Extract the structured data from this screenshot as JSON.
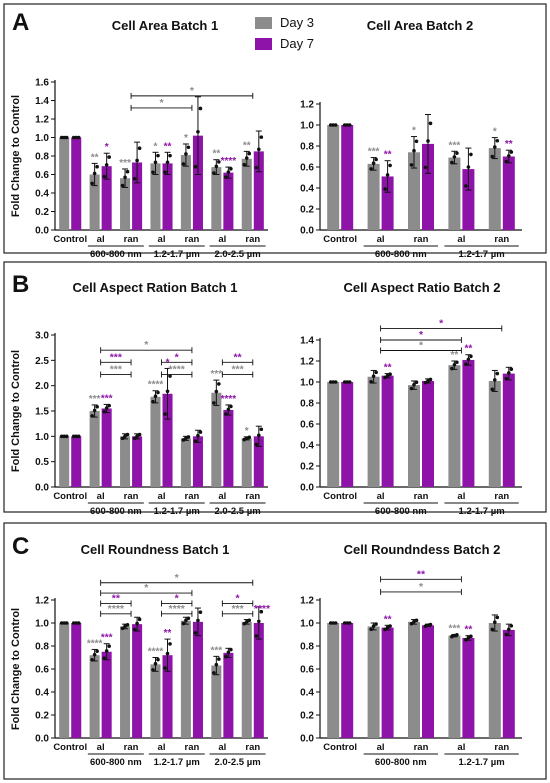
{
  "legend": [
    {
      "label": "Day 3",
      "color": "#8c8c8c"
    },
    {
      "label": "Day 7",
      "color": "#8e13a8"
    }
  ],
  "colors": {
    "day3": "#8c8c8c",
    "day7": "#8e13a8",
    "sig_gray": "#8c8c8c",
    "sig_purple": "#8e13a8"
  },
  "chart_data": [
    {
      "type": "bar",
      "panel": "A",
      "title": "Cell  Area Batch 1",
      "ylabel": "Fold Change to Control",
      "ylim": [
        0,
        1.6
      ],
      "yticks": [
        0.0,
        0.2,
        0.4,
        0.6,
        0.8,
        1.0,
        1.2,
        1.4,
        1.6
      ],
      "categories": [
        "Control",
        "al",
        "ran",
        "al",
        "ran",
        "al",
        "ran"
      ],
      "groups": [
        {
          "label": "600-800 nm",
          "from": 1,
          "to": 2
        },
        {
          "label": "1.2-1.7 µm",
          "from": 3,
          "to": 4
        },
        {
          "label": "2.0-2.5 µm",
          "from": 5,
          "to": 6
        }
      ],
      "series": [
        {
          "values": [
            1.0,
            0.6,
            0.56,
            0.72,
            0.81,
            0.68,
            0.77
          ],
          "err": [
            0,
            0.12,
            0.1,
            0.12,
            0.12,
            0.08,
            0.08
          ],
          "sig": [
            "",
            "**",
            "***",
            "*",
            "*",
            "**",
            "**"
          ]
        },
        {
          "values": [
            1.0,
            0.69,
            0.73,
            0.72,
            1.02,
            0.62,
            0.85
          ],
          "err": [
            0,
            0.14,
            0.22,
            0.12,
            0.42,
            0.06,
            0.22
          ],
          "sig": [
            "",
            "*",
            "",
            "**",
            "",
            "****",
            ""
          ]
        }
      ],
      "brackets": [
        {
          "from": 2,
          "to": 4,
          "y": 1.32,
          "label": "*",
          "color": "gray"
        },
        {
          "from": 2,
          "to": 6,
          "y": 1.45,
          "label": "*",
          "color": "gray"
        }
      ]
    },
    {
      "type": "bar",
      "panel": "A",
      "title": "Cell Area Batch 2",
      "ylabel": "",
      "ylim": [
        0,
        1.2
      ],
      "yticks": [
        0.0,
        0.2,
        0.4,
        0.6,
        0.8,
        1.0,
        1.2
      ],
      "categories": [
        "Control",
        "al",
        "ran",
        "al",
        "ran"
      ],
      "groups": [
        {
          "label": "600-800 nm",
          "from": 1,
          "to": 2
        },
        {
          "label": "1.2-1.7 µm",
          "from": 3,
          "to": 4
        }
      ],
      "series": [
        {
          "values": [
            1.0,
            0.63,
            0.74,
            0.69,
            0.78
          ],
          "err": [
            0,
            0.06,
            0.15,
            0.06,
            0.1
          ],
          "sig": [
            "",
            "***",
            "*",
            "***",
            "*"
          ]
        },
        {
          "values": [
            1.0,
            0.51,
            0.82,
            0.58,
            0.7
          ],
          "err": [
            0,
            0.15,
            0.28,
            0.2,
            0.06
          ],
          "sig": [
            "",
            "**",
            "",
            "",
            "**"
          ]
        }
      ],
      "brackets": []
    },
    {
      "type": "bar",
      "panel": "B",
      "title": "Cell Aspect  Ration Batch 1",
      "ylabel": "Fold Change to Control",
      "ylim": [
        0,
        3.0
      ],
      "yticks": [
        0.0,
        0.5,
        1.0,
        1.5,
        2.0,
        2.5,
        3.0
      ],
      "categories": [
        "Control",
        "al",
        "ran",
        "al",
        "ran",
        "al",
        "ran"
      ],
      "groups": [
        {
          "label": "600-800 nm",
          "from": 1,
          "to": 2
        },
        {
          "label": "1.2-1.7 µm",
          "from": 3,
          "to": 4
        },
        {
          "label": "2.0-2.5 µm",
          "from": 5,
          "to": 6
        }
      ],
      "series": [
        {
          "values": [
            1.0,
            1.5,
            1.0,
            1.78,
            0.96,
            1.86,
            0.96
          ],
          "err": [
            0,
            0.12,
            0.05,
            0.12,
            0.04,
            0.25,
            0.03
          ],
          "sig": [
            "",
            "***",
            "",
            "****",
            "",
            "***",
            "*"
          ]
        },
        {
          "values": [
            1.0,
            1.55,
            1.0,
            1.84,
            1.0,
            1.52,
            1.0
          ],
          "err": [
            0,
            0.08,
            0.05,
            0.5,
            0.12,
            0.1,
            0.2
          ],
          "sig": [
            "",
            "***",
            "",
            "*",
            "",
            "****",
            ""
          ]
        }
      ],
      "brackets": [
        {
          "from": 1,
          "to": 2,
          "y": 2.22,
          "label": "***",
          "color": "gray"
        },
        {
          "from": 1,
          "to": 2,
          "y": 2.46,
          "label": "***",
          "color": "purple"
        },
        {
          "from": 1,
          "to": 4,
          "y": 2.7,
          "label": "*",
          "color": "gray"
        },
        {
          "from": 3,
          "to": 4,
          "y": 2.22,
          "label": "****",
          "color": "gray"
        },
        {
          "from": 3,
          "to": 4,
          "y": 2.46,
          "label": "*",
          "color": "purple"
        },
        {
          "from": 5,
          "to": 6,
          "y": 2.22,
          "label": "***",
          "color": "gray"
        },
        {
          "from": 5,
          "to": 6,
          "y": 2.46,
          "label": "**",
          "color": "purple"
        }
      ]
    },
    {
      "type": "bar",
      "panel": "B",
      "title": "Cell  Aspect Ratio Batch 2",
      "ylabel": "",
      "ylim": [
        0,
        1.4
      ],
      "yticks": [
        0.0,
        0.2,
        0.4,
        0.6,
        0.8,
        1.0,
        1.2,
        1.4
      ],
      "categories": [
        "Control",
        "al",
        "ran",
        "al",
        "ran"
      ],
      "groups": [
        {
          "label": "600-800 nm",
          "from": 1,
          "to": 2
        },
        {
          "label": "1.2-1.7 µm",
          "from": 3,
          "to": 4
        }
      ],
      "series": [
        {
          "values": [
            1.0,
            1.05,
            0.97,
            1.16,
            1.01
          ],
          "err": [
            0,
            0.06,
            0.04,
            0.04,
            0.1
          ],
          "sig": [
            "",
            "",
            "",
            "**",
            ""
          ]
        },
        {
          "values": [
            1.0,
            1.06,
            1.01,
            1.21,
            1.08
          ],
          "err": [
            0,
            0.02,
            0.02,
            0.05,
            0.06
          ],
          "sig": [
            "",
            "**",
            "",
            "**",
            ""
          ]
        }
      ],
      "brackets": [
        {
          "from": 1,
          "to": 3,
          "y": 1.3,
          "label": "*",
          "color": "gray"
        },
        {
          "from": 1,
          "to": 3,
          "y": 1.4,
          "label": "*",
          "color": "purple"
        },
        {
          "from": 1,
          "to": 4,
          "y": 1.51,
          "label": "*",
          "color": "purple"
        }
      ]
    },
    {
      "type": "bar",
      "panel": "C",
      "title": "Cell Roundness Batch 1",
      "ylabel": "Fold Change to Control",
      "ylim": [
        0,
        1.2
      ],
      "yticks": [
        0.0,
        0.2,
        0.4,
        0.6,
        0.8,
        1.0,
        1.2
      ],
      "categories": [
        "Control",
        "al",
        "ran",
        "al",
        "ran",
        "al",
        "ran"
      ],
      "groups": [
        {
          "label": "600-800 nm",
          "from": 1,
          "to": 2
        },
        {
          "label": "1.2-1.7 µm",
          "from": 3,
          "to": 4
        },
        {
          "label": "2.0-2.5 µm",
          "from": 5,
          "to": 6
        }
      ],
      "series": [
        {
          "values": [
            1.0,
            0.72,
            0.97,
            0.64,
            1.02,
            0.63,
            1.01
          ],
          "err": [
            0,
            0.05,
            0.02,
            0.06,
            0.03,
            0.08,
            0.02
          ],
          "sig": [
            "",
            "****",
            "",
            "****",
            "",
            "***",
            ""
          ]
        },
        {
          "values": [
            1.0,
            0.75,
            0.99,
            0.72,
            1.01,
            0.74,
            1.0
          ],
          "err": [
            0,
            0.07,
            0.06,
            0.14,
            0.12,
            0.04,
            0.14
          ],
          "sig": [
            "",
            "***",
            "",
            "**",
            "",
            "",
            ""
          ]
        }
      ],
      "brackets": [
        {
          "from": 1,
          "to": 2,
          "y": 1.08,
          "label": "****",
          "color": "gray"
        },
        {
          "from": 1,
          "to": 2,
          "y": 1.17,
          "label": "**",
          "color": "purple"
        },
        {
          "from": 1,
          "to": 4,
          "y": 1.26,
          "label": "*",
          "color": "gray"
        },
        {
          "from": 1,
          "to": 6,
          "y": 1.35,
          "label": "*",
          "color": "gray"
        },
        {
          "from": 3,
          "to": 4,
          "y": 1.08,
          "label": "****",
          "color": "gray"
        },
        {
          "from": 3,
          "to": 4,
          "y": 1.17,
          "label": "*",
          "color": "purple"
        },
        {
          "from": 5,
          "to": 6,
          "y": 1.08,
          "label": "***",
          "color": "gray"
        },
        {
          "from": 5,
          "to": 6,
          "y": 1.17,
          "label": "*",
          "color": "purple"
        },
        {
          "from": 6,
          "to": 6,
          "y": 1.08,
          "label": "****",
          "color": "purple"
        }
      ]
    },
    {
      "type": "bar",
      "panel": "C",
      "title": "Cell Roundndess Batch 2",
      "ylabel": "",
      "ylim": [
        0,
        1.2
      ],
      "yticks": [
        0.0,
        0.2,
        0.4,
        0.6,
        0.8,
        1.0,
        1.2
      ],
      "categories": [
        "Control",
        "al",
        "ran",
        "al",
        "ran"
      ],
      "groups": [
        {
          "label": "600-800 nm",
          "from": 1,
          "to": 2
        },
        {
          "label": "1.2-1.7 µm",
          "from": 3,
          "to": 4
        }
      ],
      "series": [
        {
          "values": [
            1.0,
            0.97,
            1.01,
            0.89,
            1.0
          ],
          "err": [
            0,
            0.03,
            0.02,
            0.01,
            0.07
          ],
          "sig": [
            "",
            "",
            "",
            "***",
            ""
          ]
        },
        {
          "values": [
            1.0,
            0.96,
            0.98,
            0.87,
            0.94
          ],
          "err": [
            0,
            0.02,
            0.01,
            0.02,
            0.05
          ],
          "sig": [
            "",
            "**",
            "",
            "**",
            ""
          ]
        }
      ],
      "brackets": [
        {
          "from": 1,
          "to": 3,
          "y": 1.27,
          "label": "*",
          "color": "gray"
        },
        {
          "from": 1,
          "to": 3,
          "y": 1.38,
          "label": "**",
          "color": "purple"
        }
      ]
    }
  ],
  "panels": [
    {
      "letter": "A"
    },
    {
      "letter": "B"
    },
    {
      "letter": "C"
    }
  ]
}
